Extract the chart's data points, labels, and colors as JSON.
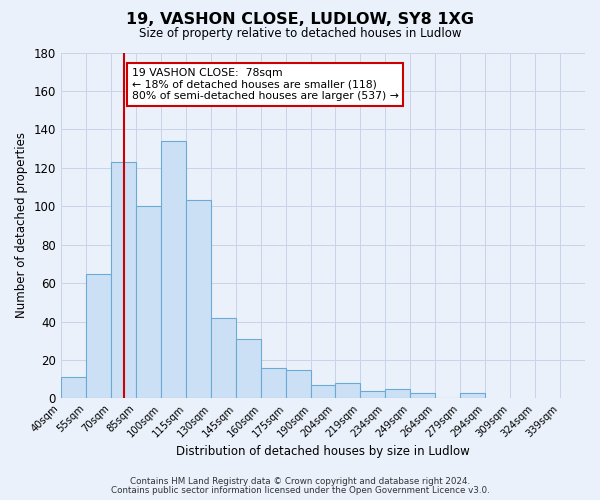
{
  "title": "19, VASHON CLOSE, LUDLOW, SY8 1XG",
  "subtitle": "Size of property relative to detached houses in Ludlow",
  "xlabel": "Distribution of detached houses by size in Ludlow",
  "ylabel": "Number of detached properties",
  "bar_values": [
    11,
    65,
    123,
    100,
    134,
    103,
    42,
    31,
    16,
    15,
    7,
    8,
    4,
    5,
    3,
    0,
    3
  ],
  "bar_left_edges": [
    40,
    55,
    70,
    85,
    100,
    115,
    130,
    145,
    160,
    175,
    190,
    204,
    219,
    234,
    249,
    264,
    279
  ],
  "bar_right_edges": [
    55,
    70,
    85,
    100,
    115,
    130,
    145,
    160,
    175,
    190,
    204,
    219,
    234,
    249,
    264,
    279,
    294
  ],
  "tick_labels": [
    "40sqm",
    "55sqm",
    "70sqm",
    "85sqm",
    "100sqm",
    "115sqm",
    "130sqm",
    "145sqm",
    "160sqm",
    "175sqm",
    "190sqm",
    "204sqm",
    "219sqm",
    "234sqm",
    "249sqm",
    "264sqm",
    "279sqm",
    "294sqm",
    "309sqm",
    "324sqm",
    "339sqm"
  ],
  "tick_positions": [
    40,
    55,
    70,
    85,
    100,
    115,
    130,
    145,
    160,
    175,
    190,
    204,
    219,
    234,
    249,
    264,
    279,
    294,
    309,
    324,
    339
  ],
  "bar_color": "#cce0f5",
  "bar_edge_color": "#6aaad4",
  "vline_x": 78,
  "vline_color": "#cc0000",
  "ylim": [
    0,
    180
  ],
  "yticks": [
    0,
    20,
    40,
    60,
    80,
    100,
    120,
    140,
    160,
    180
  ],
  "grid_color": "#c8d4e8",
  "bg_color": "#eaf1fb",
  "annotation_text": "19 VASHON CLOSE:  78sqm\n← 18% of detached houses are smaller (118)\n80% of semi-detached houses are larger (537) →",
  "annotation_box_facecolor": "#ffffff",
  "annotation_box_edgecolor": "#cc0000",
  "footer1": "Contains HM Land Registry data © Crown copyright and database right 2024.",
  "footer2": "Contains public sector information licensed under the Open Government Licence v3.0.",
  "xlim_left": 40,
  "xlim_right": 354
}
